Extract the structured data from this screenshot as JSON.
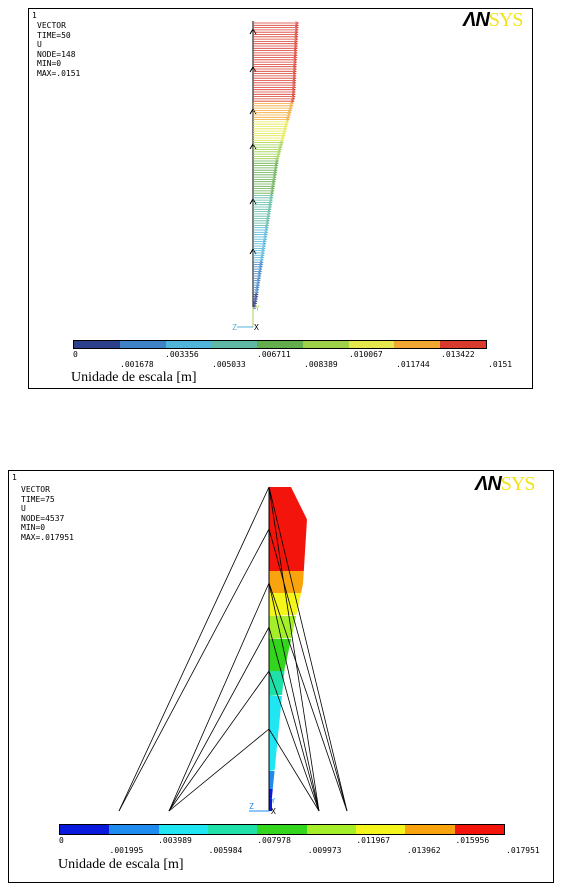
{
  "panels": [
    {
      "window_number": "1",
      "info_lines": [
        "VECTOR",
        "TIME=50",
        "U",
        "NODE=148",
        "MIN=0",
        "MAX=.0151"
      ],
      "logo": {
        "an": "ΛΝ",
        "sys": "SYS"
      },
      "axis_labels": {
        "y": "Y",
        "z": "Z",
        "x": "X"
      },
      "legend_colors": [
        "#2b3f8a",
        "#3f83c6",
        "#4fb5d9",
        "#5eb8a4",
        "#63ad4f",
        "#9ed04a",
        "#e4e84c",
        "#f0a833",
        "#d93a2e"
      ],
      "ticks_top": [
        "0",
        ".003356",
        ".006711",
        ".010067",
        ".013422"
      ],
      "ticks_bottom": [
        ".001678",
        ".005033",
        ".008389",
        ".011744",
        ".0151"
      ],
      "scale_label": "Unidade de escala [m]"
    },
    {
      "window_number": "1",
      "info_lines": [
        "VECTOR",
        "TIME=75",
        "U",
        "NODE=4537",
        "MIN=0",
        "MAX=.017951"
      ],
      "logo": {
        "an": "ΛΝ",
        "sys": "SYS"
      },
      "axis_labels": {
        "y": "Y",
        "z": "Z",
        "x": "X"
      },
      "legend_colors": [
        "#0a1adc",
        "#1e8bef",
        "#1fe6f0",
        "#1fe0a8",
        "#33d61c",
        "#a4ee2a",
        "#f4f51b",
        "#f9a40f",
        "#f3140b"
      ],
      "ticks_top": [
        "0",
        ".003989",
        ".007978",
        ".011967",
        ".015956"
      ],
      "ticks_bottom": [
        ".001995",
        ".005984",
        ".009973",
        ".013962",
        ".017951"
      ],
      "scale_label": "Unidade de escala [m]"
    }
  ]
}
